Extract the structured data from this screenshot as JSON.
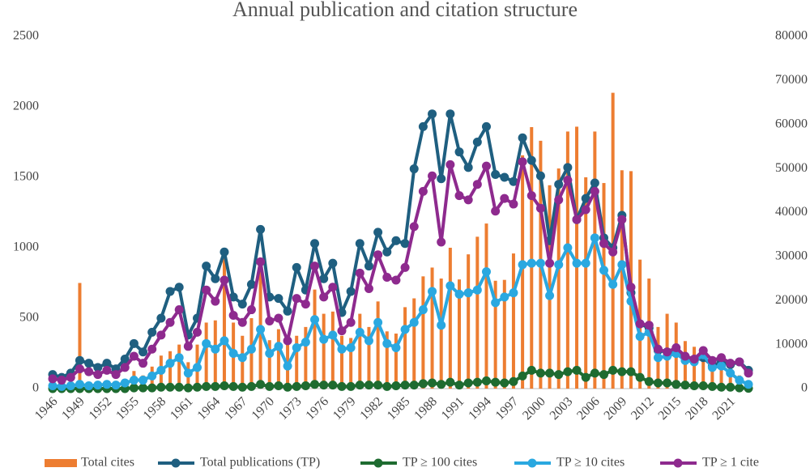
{
  "chart_data": {
    "type": "bar_line",
    "title": "Annual publication and citation structure",
    "categories": [
      "1946",
      null,
      null,
      "1949",
      null,
      null,
      "1952",
      null,
      null,
      "1955",
      null,
      null,
      "1958",
      null,
      null,
      "1961",
      null,
      null,
      "1964",
      null,
      null,
      "1967",
      null,
      null,
      "1970",
      null,
      null,
      "1973",
      null,
      null,
      "1976",
      null,
      null,
      "1979",
      null,
      null,
      "1982",
      null,
      null,
      "1985",
      null,
      null,
      "1988",
      null,
      null,
      "1991",
      null,
      null,
      "1994",
      null,
      null,
      "1997",
      null,
      null,
      "2000",
      null,
      null,
      "2003",
      null,
      null,
      "2006",
      null,
      null,
      "2009",
      null,
      null,
      "2012",
      null,
      null,
      "2015",
      null,
      null,
      "2018",
      null,
      null,
      "2021",
      null,
      null
    ],
    "ylim": [
      0,
      2500
    ],
    "yticks": [
      0,
      500,
      1000,
      1500,
      2000,
      2500
    ],
    "y2lim": [
      0,
      80000
    ],
    "y2ticks": [
      0,
      10000,
      20000,
      30000,
      40000,
      50000,
      60000,
      70000,
      80000
    ],
    "legend": "bottom",
    "series": [
      {
        "name": "Total cites",
        "type": "bar",
        "axis": "y2",
        "color": "#ed7d31",
        "values": [
          200,
          300,
          500,
          24000,
          1000,
          800,
          1500,
          1000,
          2000,
          4000,
          3000,
          5000,
          7500,
          8500,
          10000,
          6000,
          10000,
          15000,
          15500,
          31500,
          15000,
          12000,
          16000,
          27000,
          11000,
          13500,
          12000,
          12000,
          14000,
          22500,
          17000,
          17500,
          12000,
          11500,
          17000,
          14000,
          19800,
          13000,
          12500,
          18500,
          20500,
          25500,
          27500,
          25000,
          32000,
          24800,
          30500,
          34500,
          37500,
          24500,
          24700,
          30700,
          53000,
          59400,
          56300,
          46200,
          50000,
          58400,
          59500,
          48000,
          58400,
          46700,
          67200,
          49600,
          49400,
          29300,
          25000,
          14000,
          17000,
          15000,
          10800,
          9500,
          9000,
          7000,
          6000,
          4500,
          3000,
          1000
        ]
      },
      {
        "name": "Total publications (TP)",
        "type": "line",
        "color": "#1f5f80",
        "values": [
          100,
          80,
          110,
          200,
          180,
          150,
          180,
          140,
          210,
          320,
          260,
          400,
          500,
          690,
          720,
          380,
          500,
          870,
          780,
          970,
          650,
          600,
          740,
          1130,
          650,
          640,
          550,
          860,
          700,
          1030,
          780,
          890,
          540,
          690,
          1030,
          870,
          1110,
          970,
          1050,
          1030,
          1560,
          1860,
          1950,
          1490,
          1950,
          1680,
          1570,
          1750,
          1860,
          1520,
          1500,
          1470,
          1780,
          1620,
          1510,
          1050,
          1450,
          1570,
          1200,
          1350,
          1460,
          1070,
          1000,
          1230,
          680,
          460,
          430,
          270,
          260,
          250,
          220,
          200,
          220,
          160,
          190,
          170,
          190,
          130
        ]
      },
      {
        "name": "TP ≥ 100 cites",
        "type": "line",
        "color": "#1e6b30",
        "values": [
          0,
          0,
          0,
          0,
          0,
          0,
          0,
          0,
          0,
          5,
          5,
          5,
          10,
          10,
          10,
          5,
          10,
          15,
          15,
          20,
          15,
          10,
          15,
          30,
          15,
          20,
          10,
          15,
          20,
          30,
          25,
          25,
          15,
          15,
          25,
          25,
          25,
          15,
          20,
          25,
          25,
          35,
          40,
          30,
          45,
          25,
          40,
          45,
          55,
          45,
          40,
          50,
          90,
          130,
          110,
          110,
          100,
          120,
          130,
          80,
          110,
          100,
          130,
          120,
          120,
          80,
          50,
          40,
          40,
          30,
          25,
          20,
          20,
          15,
          10,
          10,
          5,
          2
        ]
      },
      {
        "name": "TP ≥ 10 cites",
        "type": "line",
        "color": "#2aa8e0",
        "values": [
          20,
          15,
          20,
          30,
          20,
          25,
          30,
          25,
          40,
          60,
          60,
          90,
          130,
          180,
          220,
          110,
          150,
          320,
          280,
          340,
          250,
          220,
          280,
          420,
          250,
          300,
          160,
          290,
          330,
          490,
          350,
          380,
          280,
          290,
          400,
          340,
          470,
          320,
          290,
          420,
          470,
          560,
          690,
          450,
          730,
          670,
          680,
          700,
          830,
          610,
          650,
          680,
          880,
          890,
          890,
          660,
          880,
          1000,
          890,
          890,
          1070,
          840,
          740,
          880,
          620,
          370,
          400,
          220,
          230,
          250,
          200,
          190,
          240,
          150,
          160,
          110,
          60,
          30
        ]
      },
      {
        "name": "TP ≥ 1 cite",
        "type": "line",
        "color": "#8e2a8e",
        "values": [
          70,
          60,
          80,
          140,
          120,
          100,
          130,
          100,
          150,
          230,
          180,
          280,
          380,
          470,
          560,
          300,
          400,
          700,
          620,
          770,
          520,
          470,
          560,
          900,
          480,
          500,
          340,
          640,
          600,
          870,
          650,
          720,
          410,
          470,
          820,
          710,
          950,
          790,
          770,
          860,
          1150,
          1400,
          1510,
          1040,
          1590,
          1370,
          1340,
          1450,
          1580,
          1260,
          1350,
          1310,
          1610,
          1370,
          1280,
          890,
          1340,
          1480,
          1200,
          1270,
          1400,
          1030,
          970,
          1200,
          720,
          460,
          450,
          280,
          260,
          290,
          230,
          210,
          270,
          200,
          220,
          180,
          190,
          110
        ]
      }
    ]
  }
}
